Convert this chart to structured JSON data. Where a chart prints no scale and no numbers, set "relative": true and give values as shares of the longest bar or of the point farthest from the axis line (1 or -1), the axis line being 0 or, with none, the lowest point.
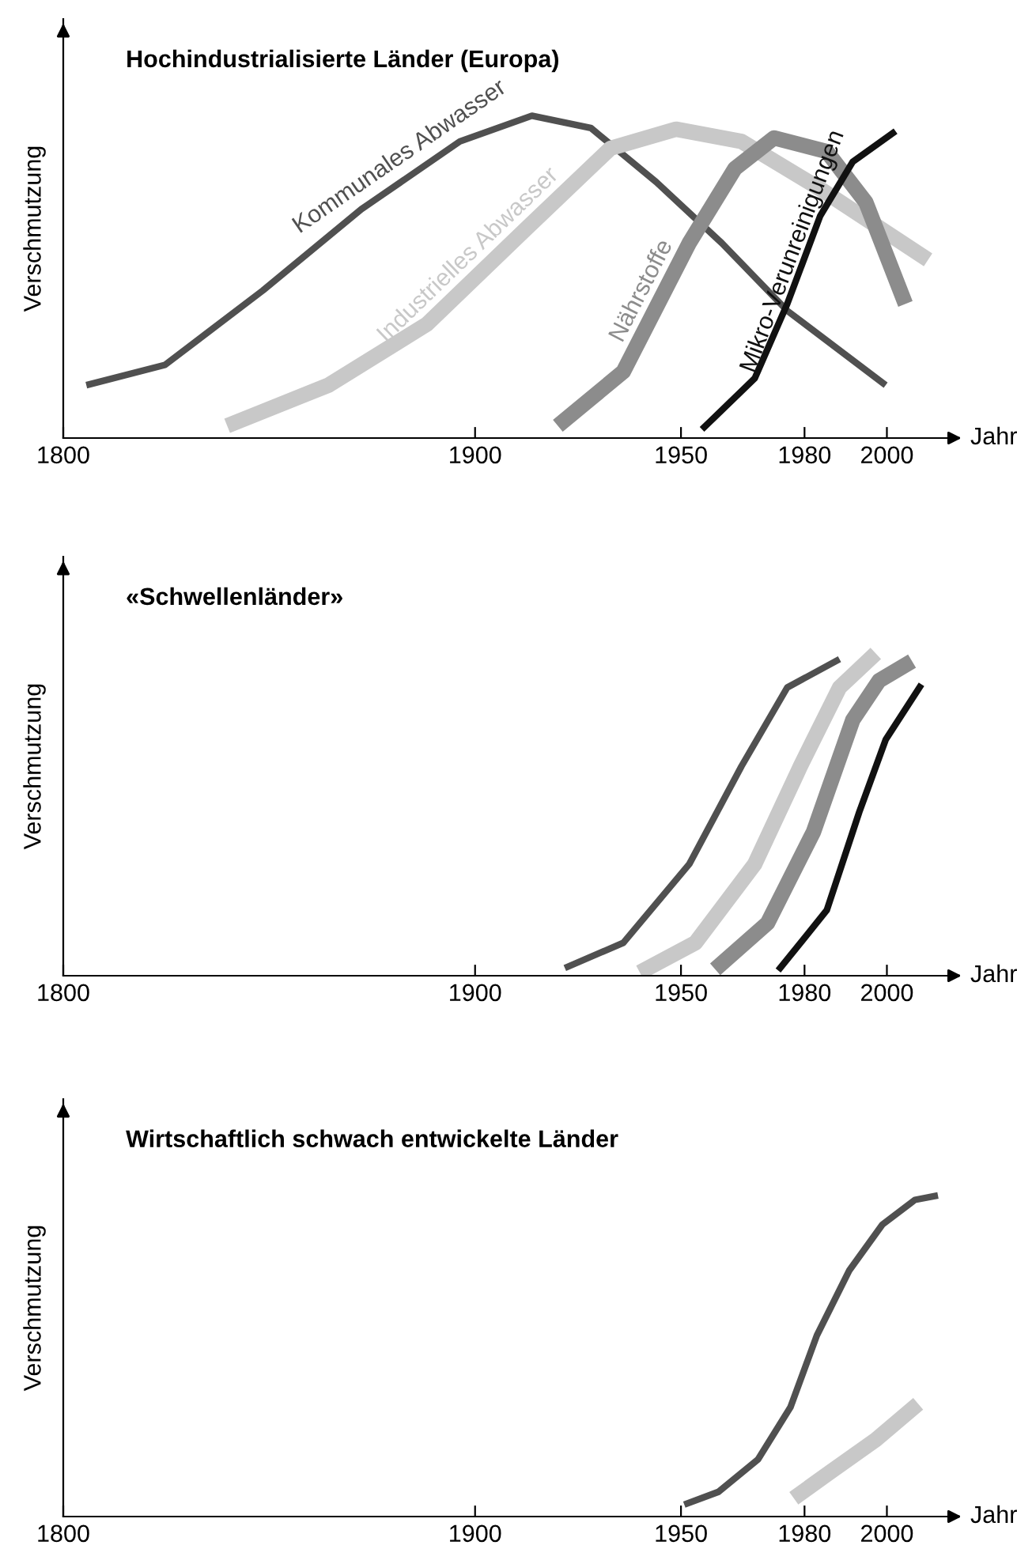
{
  "chart_data": [
    {
      "type": "line",
      "title": "Hochindustrialisierte Länder (Europa)",
      "xlabel": "Jahr",
      "ylabel": "Verschmutzung",
      "relative": true,
      "xlim": [
        1800,
        2017
      ],
      "xticks": [
        1800,
        1900,
        1950,
        1980,
        2000
      ],
      "grid": false,
      "legend": false,
      "line_style": "solid",
      "marker": "none",
      "series": [
        {
          "name": "Kommunales Abwasser",
          "color": "#505050",
          "x": [
            1805.6,
            1824.7,
            1848.5,
            1872.4,
            1896.3,
            1913.8,
            1928.1,
            1944,
            1959.9,
            1975.8,
            1999.7
          ],
          "values": [
            0.164,
            0.227,
            0.458,
            0.71,
            0.92,
            1.0,
            0.962,
            0.794,
            0.605,
            0.395,
            0.164
          ]
        },
        {
          "name": "Industrielles Abwasser",
          "color": "#c8c8c8",
          "x": [
            1839.8,
            1864.4,
            1888.3,
            1912.2,
            1932.9,
            1948.8,
            1964.7,
            1983.8,
            2010
          ],
          "values": [
            0.038,
            0.164,
            0.353,
            0.647,
            0.899,
            0.958,
            0.92,
            0.773,
            0.553
          ]
        },
        {
          "name": "Nährstoffe",
          "color": "#8c8c8c",
          "x": [
            1920.1,
            1936,
            1952,
            1963.1,
            1972.6,
            1985.4,
            1994.9,
            2004.5
          ],
          "values": [
            0.038,
            0.206,
            0.605,
            0.836,
            0.931,
            0.889,
            0.731,
            0.416
          ]
        },
        {
          "name": "Mikro-Verunreinigungen",
          "color": "#111111",
          "x": [
            1955.1,
            1967.9,
            1975.8,
            1983.8,
            1991.7,
            2002.1
          ],
          "values": [
            0.027,
            0.185,
            0.416,
            0.689,
            0.857,
            0.952
          ]
        }
      ]
    },
    {
      "type": "line",
      "title": "«Schwellenländer»",
      "xlabel": "Jahr",
      "ylabel": "Verschmutzung",
      "relative": true,
      "xlim": [
        1800,
        2017
      ],
      "xticks": [
        1800,
        1900,
        1950,
        1980,
        2000
      ],
      "grid": false,
      "legend": false,
      "line_style": "solid",
      "marker": "none",
      "series": [
        {
          "color": "#505050",
          "x": [
            1921.8,
            1936,
            1952,
            1964.7,
            1975.8,
            1988.5
          ],
          "values": [
            0.024,
            0.102,
            0.346,
            0.65,
            0.894,
            0.982
          ]
        },
        {
          "color": "#c8c8c8",
          "x": [
            1940,
            1953.5,
            1967.9,
            1979,
            1988.5,
            1997.3
          ],
          "values": [
            0.01,
            0.102,
            0.346,
            0.65,
            0.894,
            1.0
          ]
        },
        {
          "color": "#8c8c8c",
          "x": [
            1958.3,
            1971,
            1982.2,
            1991.7,
            1998.1,
            2006.1
          ],
          "values": [
            0.02,
            0.163,
            0.447,
            0.793,
            0.915,
            0.976
          ]
        },
        {
          "color": "#111111",
          "x": [
            1973.6,
            1985.4,
            1993.3,
            1999.7,
            2008.4
          ],
          "values": [
            0.016,
            0.203,
            0.508,
            0.732,
            0.904
          ]
        }
      ]
    },
    {
      "type": "line",
      "title": "Wirtschaftlich schwach entwickelte Länder",
      "xlabel": "Jahr",
      "ylabel": "Verschmutzung",
      "relative": true,
      "xlim": [
        1800,
        2017
      ],
      "xticks": [
        1800,
        1900,
        1950,
        1980,
        2000
      ],
      "grid": false,
      "legend": false,
      "line_style": "solid",
      "marker": "none",
      "series": [
        {
          "color": "#505050",
          "x": [
            1950.8,
            1959.1,
            1968.7,
            1976.6,
            1983,
            1990.9,
            1998.9,
            2006.8,
            2012.4
          ],
          "values": [
            0.037,
            0.077,
            0.178,
            0.341,
            0.564,
            0.767,
            0.909,
            0.986,
            1.0
          ]
        },
        {
          "color": "#c8c8c8",
          "x": [
            1977.4,
            1986.2,
            1997.3,
            2007.6
          ],
          "values": [
            0.057,
            0.138,
            0.239,
            0.351
          ]
        }
      ]
    }
  ]
}
